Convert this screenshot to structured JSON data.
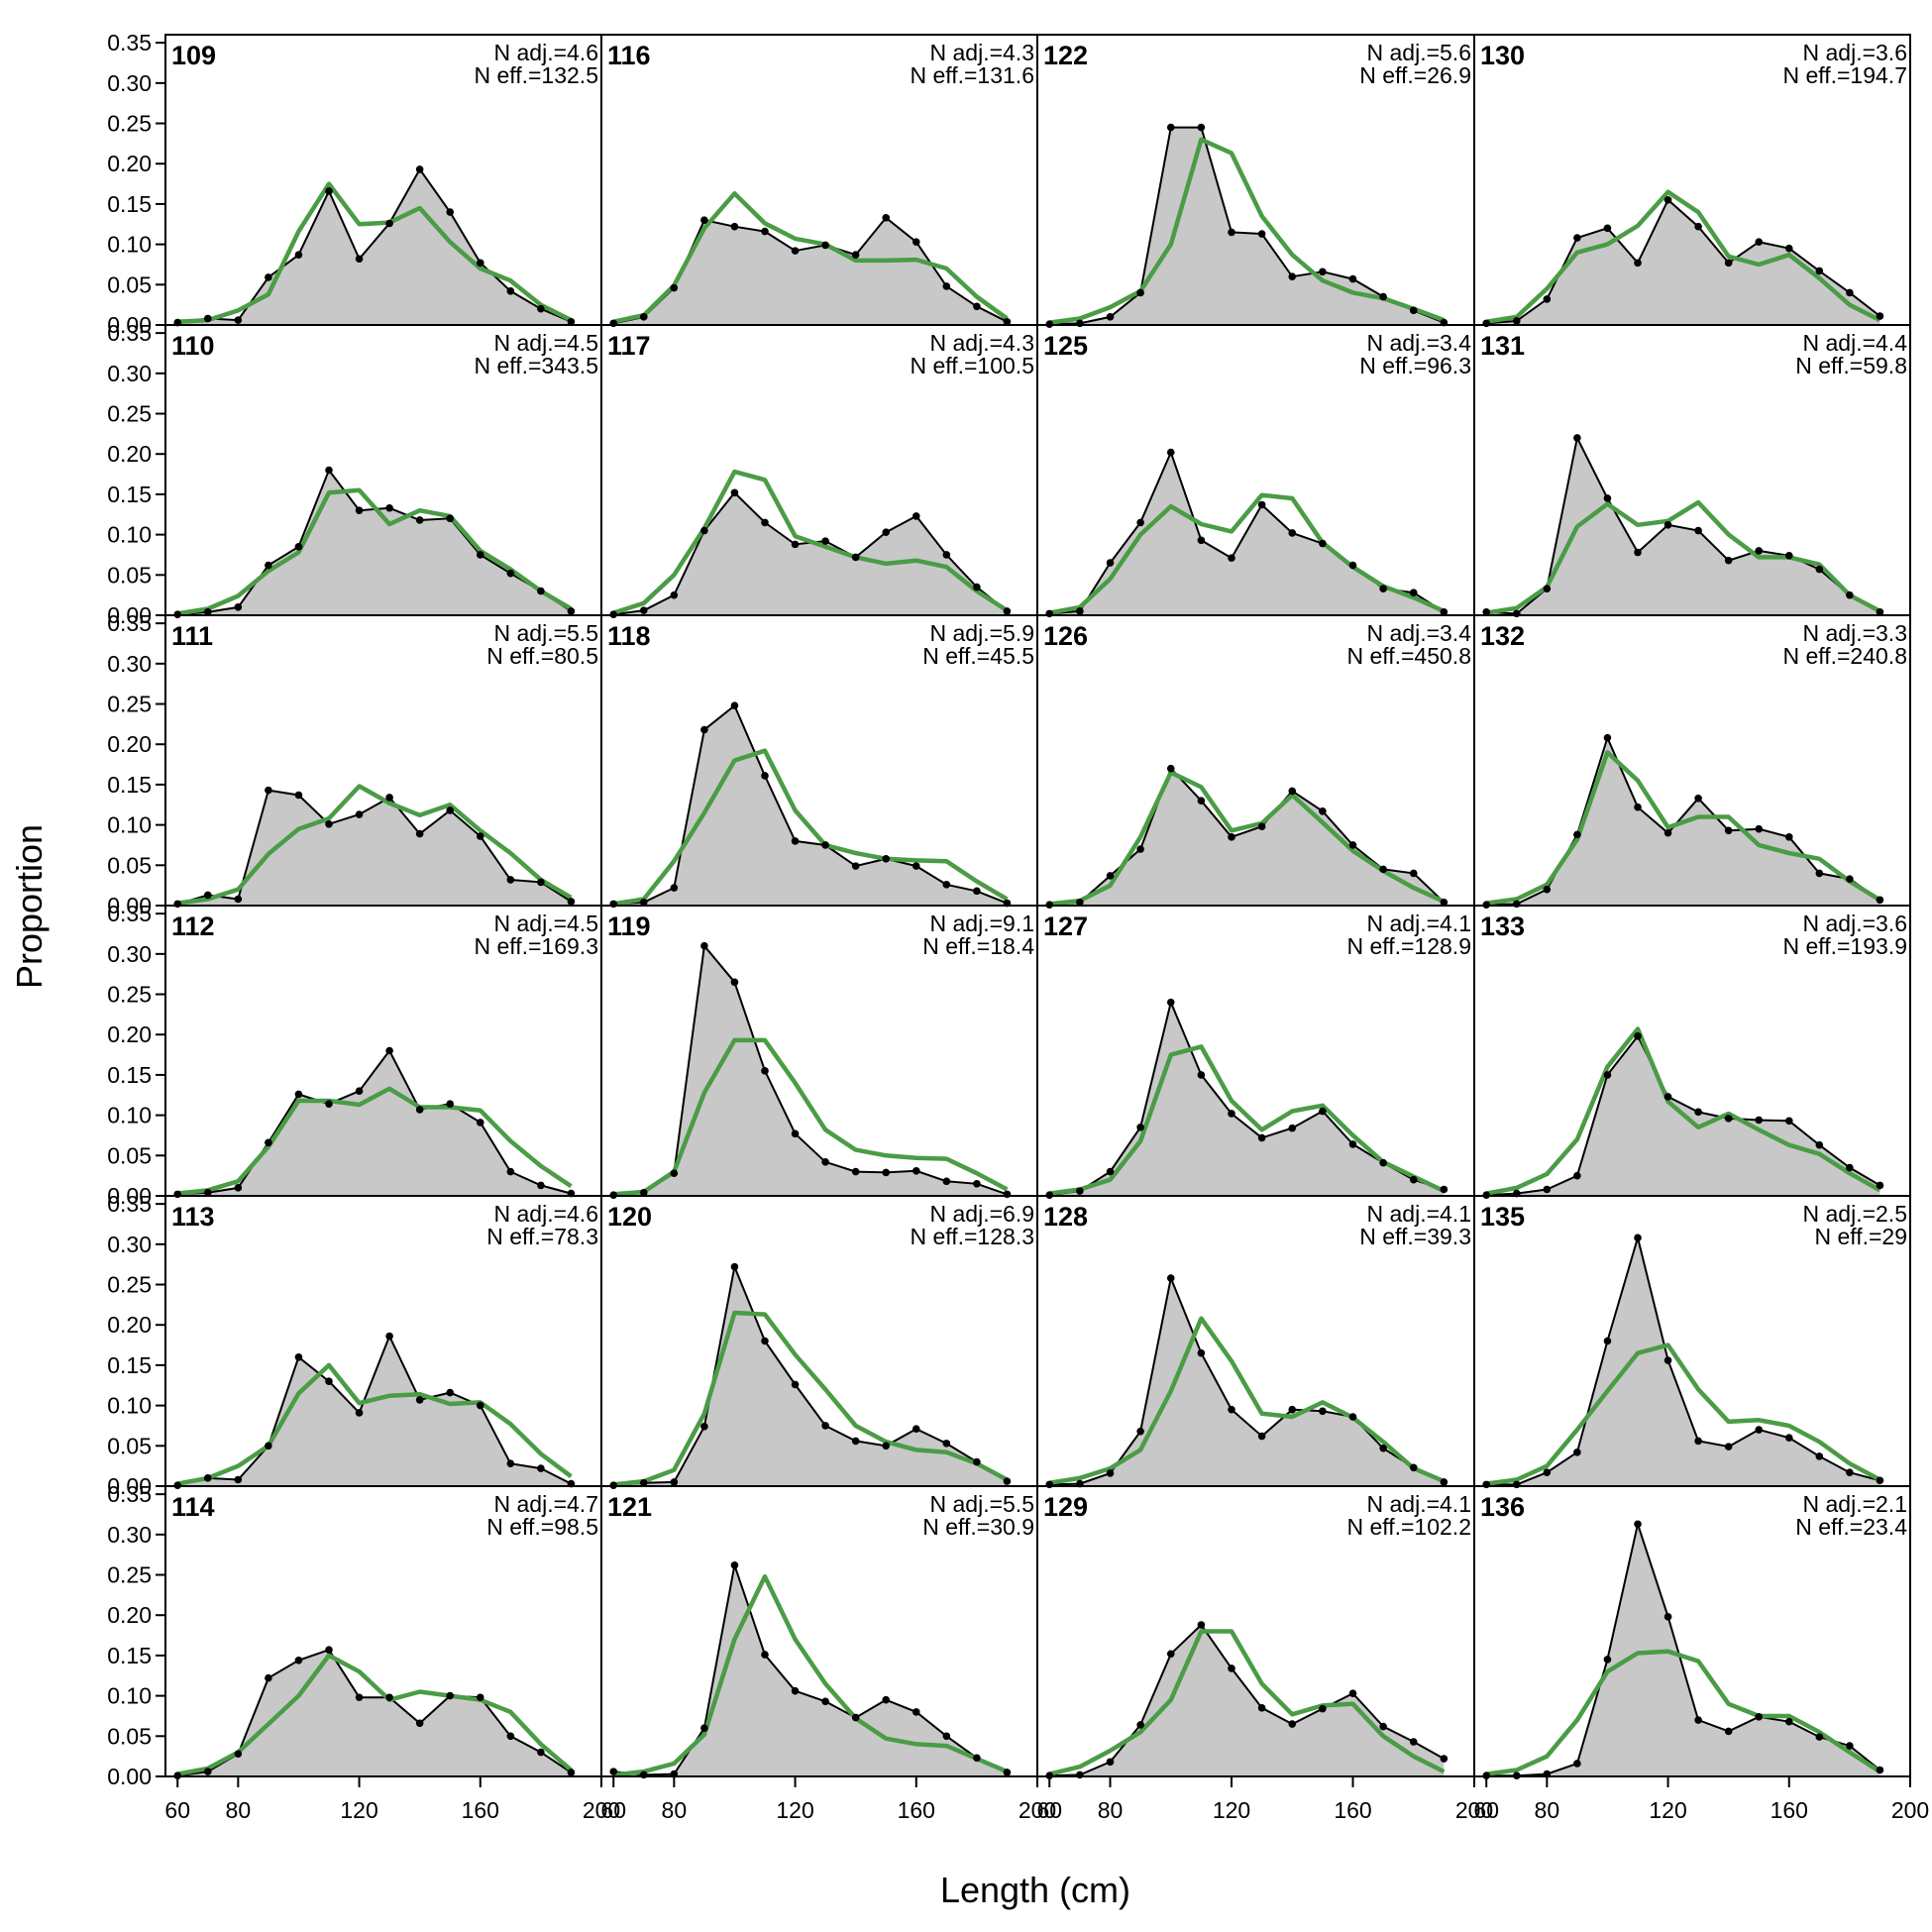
{
  "chart_data": {
    "type": "area",
    "figure_type": "multi-panel length composition fit",
    "xlabel": "Length (cm)",
    "ylabel": "Proportion",
    "xlim": [
      56,
      200
    ],
    "ylim": [
      0,
      0.36
    ],
    "xticks": [
      60,
      80,
      120,
      160,
      200
    ],
    "yticks": [
      0.0,
      0.05,
      0.1,
      0.15,
      0.2,
      0.25,
      0.3,
      0.35
    ],
    "ytick_labels": [
      "0.00",
      "0.05",
      "0.10",
      "0.15",
      "0.20",
      "0.25",
      "0.30",
      "0.35"
    ],
    "bins": [
      60,
      70,
      80,
      90,
      100,
      110,
      120,
      130,
      140,
      150,
      160,
      170,
      180,
      190
    ],
    "series_styles": {
      "observed": {
        "fill": "#c8c8c8",
        "line": "#000000",
        "point": "#000000"
      },
      "expected": {
        "line": "#4a9c45"
      }
    },
    "panels": [
      {
        "label": "109",
        "nadj": "N adj.=4.6",
        "neff": "N eff.=132.5",
        "obs": [
          0.003,
          0.008,
          0.006,
          0.059,
          0.087,
          0.166,
          0.082,
          0.126,
          0.193,
          0.14,
          0.077,
          0.042,
          0.02,
          0.004
        ],
        "exp": [
          0.004,
          0.006,
          0.018,
          0.038,
          0.116,
          0.175,
          0.125,
          0.127,
          0.145,
          0.103,
          0.07,
          0.055,
          0.025,
          0.006
        ]
      },
      {
        "label": "116",
        "nadj": "N adj.=4.3",
        "neff": "N eff.=131.6",
        "obs": [
          0.002,
          0.01,
          0.046,
          0.13,
          0.122,
          0.116,
          0.092,
          0.099,
          0.087,
          0.133,
          0.103,
          0.048,
          0.023,
          0.004
        ],
        "exp": [
          0.004,
          0.012,
          0.049,
          0.12,
          0.163,
          0.126,
          0.107,
          0.1,
          0.08,
          0.08,
          0.081,
          0.07,
          0.035,
          0.008
        ]
      },
      {
        "label": "122",
        "nadj": "N adj.=5.6",
        "neff": "N eff.=26.9",
        "obs": [
          0.001,
          0.002,
          0.01,
          0.04,
          0.245,
          0.245,
          0.115,
          0.113,
          0.06,
          0.066,
          0.057,
          0.035,
          0.018,
          0.003
        ],
        "exp": [
          0.003,
          0.008,
          0.022,
          0.042,
          0.1,
          0.23,
          0.213,
          0.135,
          0.087,
          0.055,
          0.04,
          0.033,
          0.02,
          0.006
        ]
      },
      {
        "label": "130",
        "nadj": "N adj.=3.6",
        "neff": "N eff.=194.7",
        "obs": [
          0.002,
          0.005,
          0.032,
          0.108,
          0.12,
          0.077,
          0.155,
          0.122,
          0.077,
          0.103,
          0.095,
          0.067,
          0.04,
          0.011
        ],
        "exp": [
          0.004,
          0.01,
          0.045,
          0.09,
          0.1,
          0.123,
          0.165,
          0.14,
          0.085,
          0.075,
          0.087,
          0.058,
          0.025,
          0.006
        ]
      },
      {
        "label": "110",
        "nadj": "N adj.=4.5",
        "neff": "N eff.=343.5",
        "obs": [
          0.001,
          0.004,
          0.01,
          0.062,
          0.085,
          0.18,
          0.13,
          0.133,
          0.118,
          0.12,
          0.075,
          0.052,
          0.03,
          0.005
        ],
        "exp": [
          0.002,
          0.008,
          0.024,
          0.055,
          0.078,
          0.152,
          0.155,
          0.113,
          0.13,
          0.123,
          0.08,
          0.057,
          0.03,
          0.008
        ]
      },
      {
        "label": "117",
        "nadj": "N adj.=4.3",
        "neff": "N eff.=100.5",
        "obs": [
          0.001,
          0.006,
          0.025,
          0.105,
          0.152,
          0.115,
          0.088,
          0.092,
          0.072,
          0.103,
          0.123,
          0.075,
          0.035,
          0.005
        ],
        "exp": [
          0.003,
          0.015,
          0.05,
          0.108,
          0.178,
          0.168,
          0.098,
          0.085,
          0.072,
          0.064,
          0.068,
          0.06,
          0.03,
          0.006
        ]
      },
      {
        "label": "125",
        "nadj": "N adj.=3.4",
        "neff": "N eff.=96.3",
        "obs": [
          0.002,
          0.005,
          0.065,
          0.115,
          0.202,
          0.093,
          0.071,
          0.137,
          0.102,
          0.089,
          0.062,
          0.033,
          0.028,
          0.004
        ],
        "exp": [
          0.003,
          0.01,
          0.045,
          0.1,
          0.135,
          0.113,
          0.104,
          0.149,
          0.145,
          0.09,
          0.06,
          0.036,
          0.022,
          0.005
        ]
      },
      {
        "label": "131",
        "nadj": "N adj.=4.4",
        "neff": "N eff.=59.8",
        "obs": [
          0.004,
          0.002,
          0.033,
          0.22,
          0.145,
          0.078,
          0.112,
          0.105,
          0.068,
          0.08,
          0.074,
          0.057,
          0.025,
          0.004
        ],
        "exp": [
          0.003,
          0.009,
          0.035,
          0.11,
          0.138,
          0.112,
          0.117,
          0.14,
          0.1,
          0.072,
          0.072,
          0.063,
          0.025,
          0.005
        ]
      },
      {
        "label": "111",
        "nadj": "N adj.=5.5",
        "neff": "N eff.=80.5",
        "obs": [
          0.002,
          0.013,
          0.008,
          0.143,
          0.137,
          0.101,
          0.113,
          0.134,
          0.089,
          0.118,
          0.086,
          0.032,
          0.029,
          0.005
        ],
        "exp": [
          0.003,
          0.008,
          0.02,
          0.064,
          0.095,
          0.108,
          0.148,
          0.127,
          0.112,
          0.125,
          0.093,
          0.065,
          0.032,
          0.01
        ]
      },
      {
        "label": "118",
        "nadj": "N adj.=5.9",
        "neff": "N eff.=45.5",
        "obs": [
          0.002,
          0.004,
          0.022,
          0.218,
          0.248,
          0.161,
          0.08,
          0.075,
          0.049,
          0.058,
          0.049,
          0.026,
          0.018,
          0.003
        ],
        "exp": [
          0.002,
          0.008,
          0.055,
          0.115,
          0.18,
          0.192,
          0.118,
          0.075,
          0.065,
          0.058,
          0.056,
          0.055,
          0.03,
          0.008
        ]
      },
      {
        "label": "126",
        "nadj": "N adj.=3.4",
        "neff": "N eff.=450.8",
        "obs": [
          0.001,
          0.004,
          0.037,
          0.07,
          0.17,
          0.13,
          0.085,
          0.098,
          0.142,
          0.117,
          0.075,
          0.045,
          0.04,
          0.004
        ],
        "exp": [
          0.002,
          0.006,
          0.025,
          0.085,
          0.165,
          0.147,
          0.093,
          0.102,
          0.137,
          0.103,
          0.068,
          0.043,
          0.022,
          0.005
        ]
      },
      {
        "label": "132",
        "nadj": "N adj.=3.3",
        "neff": "N eff.=240.8",
        "obs": [
          0.001,
          0.002,
          0.02,
          0.088,
          0.208,
          0.122,
          0.09,
          0.133,
          0.093,
          0.095,
          0.085,
          0.04,
          0.033,
          0.007
        ],
        "exp": [
          0.003,
          0.008,
          0.026,
          0.082,
          0.19,
          0.155,
          0.097,
          0.11,
          0.11,
          0.075,
          0.065,
          0.058,
          0.03,
          0.007
        ]
      },
      {
        "label": "112",
        "nadj": "N adj.=4.5",
        "neff": "N eff.=169.3",
        "obs": [
          0.002,
          0.004,
          0.01,
          0.066,
          0.126,
          0.114,
          0.13,
          0.18,
          0.107,
          0.114,
          0.091,
          0.03,
          0.013,
          0.003
        ],
        "exp": [
          0.003,
          0.007,
          0.018,
          0.061,
          0.118,
          0.118,
          0.113,
          0.133,
          0.11,
          0.11,
          0.106,
          0.068,
          0.037,
          0.012
        ]
      },
      {
        "label": "119",
        "nadj": "N adj.=9.1",
        "neff": "N eff.=18.4",
        "obs": [
          0.001,
          0.004,
          0.028,
          0.31,
          0.265,
          0.155,
          0.077,
          0.042,
          0.03,
          0.029,
          0.031,
          0.018,
          0.015,
          0.002
        ],
        "exp": [
          0.002,
          0.005,
          0.03,
          0.128,
          0.193,
          0.193,
          0.14,
          0.082,
          0.057,
          0.05,
          0.047,
          0.046,
          0.028,
          0.008
        ]
      },
      {
        "label": "127",
        "nadj": "N adj.=4.1",
        "neff": "N eff.=128.9",
        "obs": [
          0.001,
          0.006,
          0.03,
          0.085,
          0.24,
          0.15,
          0.102,
          0.072,
          0.084,
          0.105,
          0.064,
          0.041,
          0.02,
          0.008
        ],
        "exp": [
          0.003,
          0.008,
          0.02,
          0.068,
          0.175,
          0.185,
          0.118,
          0.082,
          0.105,
          0.112,
          0.075,
          0.042,
          0.024,
          0.006
        ]
      },
      {
        "label": "133",
        "nadj": "N adj.=3.6",
        "neff": "N eff.=193.9",
        "obs": [
          0.001,
          0.003,
          0.008,
          0.025,
          0.15,
          0.198,
          0.123,
          0.104,
          0.096,
          0.094,
          0.093,
          0.063,
          0.035,
          0.013
        ],
        "exp": [
          0.003,
          0.01,
          0.027,
          0.07,
          0.16,
          0.207,
          0.117,
          0.085,
          0.102,
          0.082,
          0.063,
          0.052,
          0.028,
          0.007
        ]
      },
      {
        "label": "113",
        "nadj": "N adj.=4.6",
        "neff": "N eff.=78.3",
        "obs": [
          0.001,
          0.01,
          0.008,
          0.05,
          0.16,
          0.13,
          0.091,
          0.186,
          0.107,
          0.116,
          0.1,
          0.028,
          0.022,
          0.003
        ],
        "exp": [
          0.003,
          0.01,
          0.025,
          0.05,
          0.115,
          0.15,
          0.103,
          0.112,
          0.114,
          0.102,
          0.104,
          0.077,
          0.04,
          0.012
        ]
      },
      {
        "label": "120",
        "nadj": "N adj.=6.9",
        "neff": "N eff.=128.3",
        "obs": [
          0.001,
          0.004,
          0.005,
          0.074,
          0.272,
          0.18,
          0.126,
          0.075,
          0.056,
          0.05,
          0.071,
          0.053,
          0.03,
          0.006
        ],
        "exp": [
          0.002,
          0.006,
          0.02,
          0.09,
          0.215,
          0.213,
          0.163,
          0.12,
          0.075,
          0.055,
          0.045,
          0.042,
          0.028,
          0.008
        ]
      },
      {
        "label": "128",
        "nadj": "N adj.=4.1",
        "neff": "N eff.=39.3",
        "obs": [
          0.002,
          0.003,
          0.016,
          0.068,
          0.258,
          0.165,
          0.095,
          0.062,
          0.095,
          0.093,
          0.086,
          0.047,
          0.023,
          0.005
        ],
        "exp": [
          0.004,
          0.01,
          0.022,
          0.045,
          0.118,
          0.208,
          0.155,
          0.09,
          0.086,
          0.104,
          0.085,
          0.055,
          0.022,
          0.006
        ]
      },
      {
        "label": "135",
        "nadj": "N adj.=2.5",
        "neff": "N eff.=29",
        "obs": [
          0.002,
          0.002,
          0.017,
          0.042,
          0.18,
          0.308,
          0.156,
          0.056,
          0.049,
          0.07,
          0.06,
          0.037,
          0.017,
          0.007
        ],
        "exp": [
          0.003,
          0.008,
          0.025,
          0.07,
          0.118,
          0.165,
          0.175,
          0.12,
          0.08,
          0.082,
          0.075,
          0.055,
          0.028,
          0.008
        ]
      },
      {
        "label": "114",
        "nadj": "N adj.=4.7",
        "neff": "N eff.=98.5",
        "obs": [
          0.001,
          0.006,
          0.028,
          0.122,
          0.144,
          0.157,
          0.098,
          0.098,
          0.066,
          0.1,
          0.098,
          0.05,
          0.03,
          0.005
        ],
        "exp": [
          0.003,
          0.01,
          0.03,
          0.065,
          0.1,
          0.15,
          0.13,
          0.095,
          0.105,
          0.1,
          0.095,
          0.08,
          0.04,
          0.008
        ]
      },
      {
        "label": "121",
        "nadj": "N adj.=5.5",
        "neff": "N eff.=30.9",
        "obs": [
          0.006,
          0.002,
          0.003,
          0.06,
          0.262,
          0.151,
          0.106,
          0.093,
          0.073,
          0.095,
          0.08,
          0.05,
          0.023,
          0.005
        ],
        "exp": [
          0.002,
          0.006,
          0.016,
          0.052,
          0.17,
          0.248,
          0.17,
          0.115,
          0.072,
          0.047,
          0.04,
          0.038,
          0.022,
          0.006
        ]
      },
      {
        "label": "129",
        "nadj": "N adj.=4.1",
        "neff": "N eff.=102.2",
        "obs": [
          0.001,
          0.002,
          0.018,
          0.064,
          0.152,
          0.188,
          0.134,
          0.085,
          0.065,
          0.084,
          0.103,
          0.062,
          0.043,
          0.022
        ],
        "exp": [
          0.003,
          0.012,
          0.032,
          0.055,
          0.095,
          0.18,
          0.18,
          0.115,
          0.077,
          0.088,
          0.09,
          0.05,
          0.025,
          0.006
        ]
      },
      {
        "label": "136",
        "nadj": "N adj.=2.1",
        "neff": "N eff.=23.4",
        "obs": [
          0.001,
          0.001,
          0.003,
          0.016,
          0.145,
          0.313,
          0.198,
          0.07,
          0.056,
          0.074,
          0.068,
          0.049,
          0.038,
          0.008
        ],
        "exp": [
          0.003,
          0.008,
          0.025,
          0.07,
          0.13,
          0.153,
          0.155,
          0.143,
          0.09,
          0.075,
          0.075,
          0.055,
          0.03,
          0.006
        ]
      }
    ]
  }
}
